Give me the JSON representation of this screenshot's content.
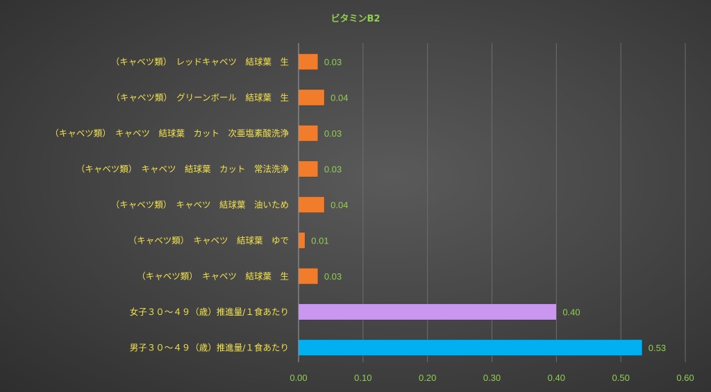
{
  "chart_data": {
    "type": "bar",
    "orientation": "horizontal",
    "title": "ビタミンB2",
    "xlabel": "",
    "ylabel": "",
    "xlim": [
      0,
      0.6
    ],
    "xticks": [
      "0.00",
      "0.10",
      "0.20",
      "0.30",
      "0.40",
      "0.50",
      "0.60"
    ],
    "grid": true,
    "legend": "none",
    "categories": [
      "（キャベツ類）　レッドキャベツ　結球葉　生",
      "（キャベツ類）　グリーンボール　結球葉　生",
      "（キャベツ類）　キャベツ　結球葉　カット　次亜塩素酸洗浄",
      "（キャベツ類）　キャベツ　結球葉　カット　常法洗浄",
      "（キャベツ類）　キャベツ　結球葉　油いため",
      "（キャベツ類）　キャベツ　結球葉　ゆで",
      "（キャベツ類）　キャベツ　結球葉　生",
      "女子３０～４９（歳）推進量/１食あたり",
      "男子３０～４９（歳）推進量/１食あたり"
    ],
    "values": [
      0.03,
      0.04,
      0.03,
      0.03,
      0.04,
      0.01,
      0.03,
      0.4,
      0.533
    ],
    "value_labels": [
      "0.03",
      "0.04",
      "0.03",
      "0.03",
      "0.04",
      "0.01",
      "0.03",
      "0.40",
      "0.53"
    ],
    "colors": [
      "#f07c2c",
      "#f07c2c",
      "#f07c2c",
      "#f07c2c",
      "#f07c2c",
      "#f07c2c",
      "#f07c2c",
      "#c997f0",
      "#00b0f0"
    ],
    "title_color": "#92d050",
    "category_label_color": "#f2e24f",
    "value_label_color": "#92d050",
    "tick_label_color": "#92d050"
  }
}
